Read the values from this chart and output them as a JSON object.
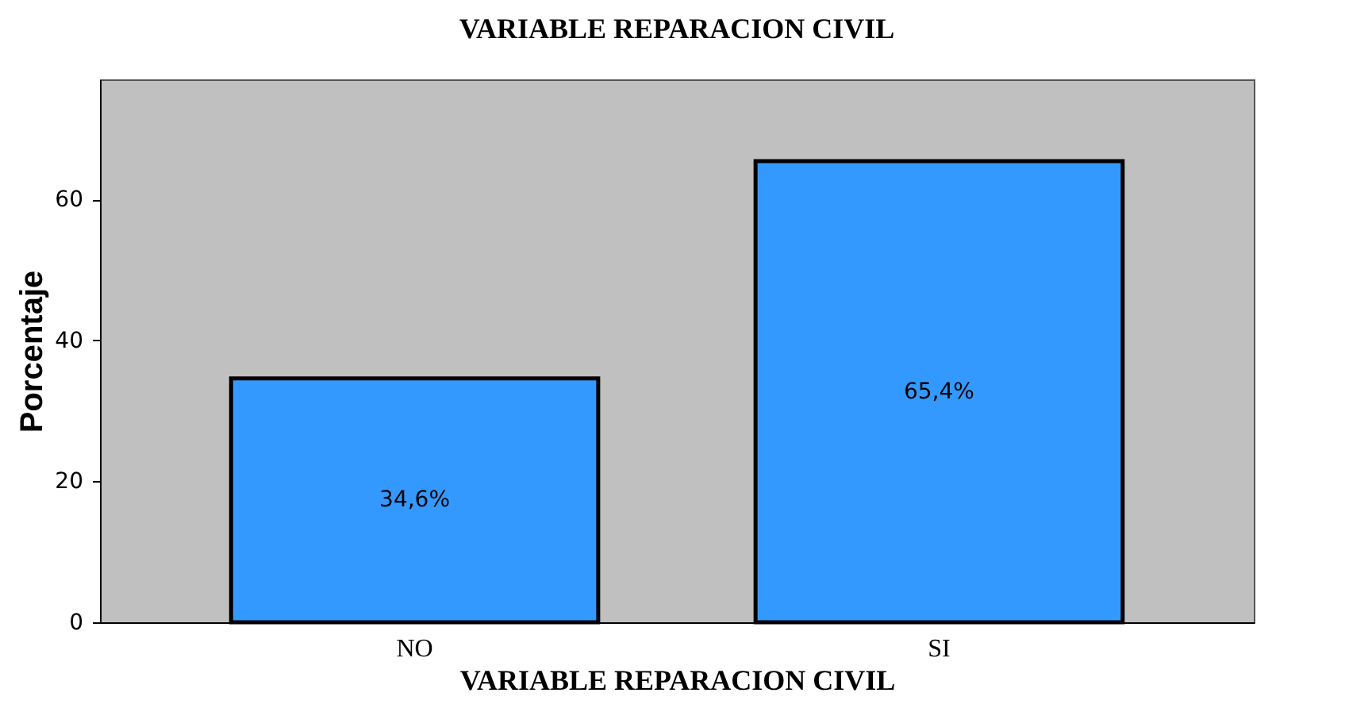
{
  "chart_data": {
    "type": "bar",
    "title": "VARIABLE REPARACION CIVIL",
    "xlabel": "VARIABLE REPARACION CIVIL",
    "ylabel": "Porcentaje",
    "categories": [
      "NO",
      "SI"
    ],
    "values": [
      34.6,
      65.4
    ],
    "value_labels": [
      "34,6%",
      "65,4%"
    ],
    "color": "#3399ff",
    "ylim": [
      0,
      77
    ],
    "yticks": [
      0,
      20,
      40,
      60
    ],
    "grid": false
  }
}
